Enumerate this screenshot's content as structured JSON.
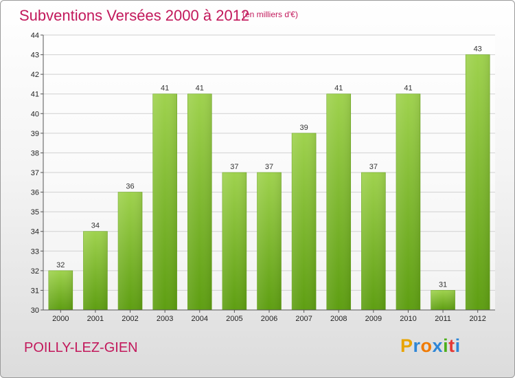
{
  "title": "Subventions Versées 2000 à 2012",
  "subtitle": "(en milliers d'€)",
  "place_name": "POILLY-LEZ-GIEN",
  "logo": {
    "letters": [
      "P",
      "r",
      "o",
      "x",
      "i",
      "t",
      "i"
    ],
    "colors": [
      "#e8a400",
      "#2e86d6",
      "#f07a00",
      "#2e86d6",
      "#4caf1a",
      "#e53935",
      "#2e86d6"
    ]
  },
  "colors": {
    "title": "#c2185b",
    "bar_top": "#9fd24e",
    "bar_bottom": "#5e9e12",
    "grid": "#d0d0d0"
  },
  "chart_data": {
    "type": "bar",
    "categories": [
      "2000",
      "2001",
      "2002",
      "2003",
      "2004",
      "2005",
      "2006",
      "2007",
      "2008",
      "2009",
      "2010",
      "2011",
      "2012"
    ],
    "values": [
      32,
      34,
      36,
      41,
      41,
      37,
      37,
      39,
      41,
      37,
      41,
      31,
      43
    ],
    "value_labels": [
      "32",
      "34",
      "36",
      "41",
      "41",
      "37",
      "37",
      "39",
      "41",
      "37",
      "41",
      "31",
      "43"
    ],
    "ylim": [
      30,
      44
    ],
    "yticks": [
      "30",
      "31",
      "32",
      "33",
      "34",
      "35",
      "36",
      "37",
      "38",
      "39",
      "40",
      "41",
      "42",
      "43",
      "44"
    ],
    "grid": true,
    "legend": "none"
  }
}
